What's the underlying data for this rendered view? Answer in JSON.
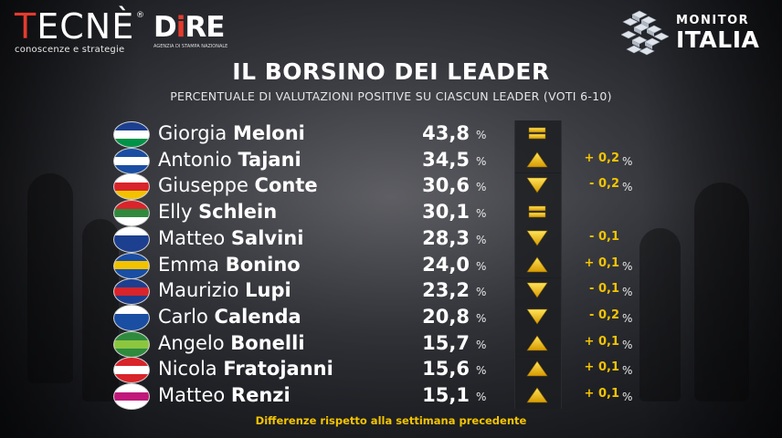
{
  "header": {
    "tecne": {
      "word_t": "T",
      "word_rest": "ECNÈ",
      "reg": "®",
      "sub": "conoscenze e strategie"
    },
    "dire": {
      "word_d": "D",
      "word_i": "i",
      "word_re": "RE",
      "sub": "AGENZIA DI STAMPA NAZIONALE"
    },
    "monitor": {
      "line1": "MONITOR",
      "line2": "ITALIA"
    }
  },
  "title": "IL BORSINO DEI LEADER",
  "subtitle": "PERCENTUALE DI VALUTAZIONI POSITIVE SU CIASCUN LEADER (VOTI 6-10)",
  "pct_sign": "%",
  "colors": {
    "accent": "#f4c400",
    "red": "#e53b2f"
  },
  "leaders": [
    {
      "first": "Giorgia",
      "last": "Meloni",
      "value": "43,8",
      "trend": "equal",
      "delta": "",
      "delta_pct": "",
      "logo_colors": [
        "#1c3f8f",
        "#ffffff",
        "#009246"
      ]
    },
    {
      "first": "Antonio",
      "last": "Tajani",
      "value": "34,5",
      "trend": "up",
      "delta": "+ 0,2",
      "delta_pct": "%",
      "logo_colors": [
        "#1a4ea3",
        "#ffffff",
        "#1a4ea3"
      ]
    },
    {
      "first": "Giuseppe",
      "last": "Conte",
      "value": "30,6",
      "trend": "down",
      "delta": "- 0,2",
      "delta_pct": "%",
      "logo_colors": [
        "#ffffff",
        "#d8242a",
        "#f2c200"
      ]
    },
    {
      "first": "Elly",
      "last": "Schlein",
      "value": "30,1",
      "trend": "equal",
      "delta": "",
      "delta_pct": "",
      "logo_colors": [
        "#d8242a",
        "#2f8a3e",
        "#ffffff"
      ]
    },
    {
      "first": "Matteo",
      "last": "Salvini",
      "value": "28,3",
      "trend": "down",
      "delta": "- 0,1",
      "delta_pct": "",
      "logo_colors": [
        "#ffffff",
        "#1c3f8f",
        "#1c3f8f"
      ]
    },
    {
      "first": "Emma",
      "last": "Bonino",
      "value": "24,0",
      "trend": "up",
      "delta": "+ 0,1",
      "delta_pct": "%",
      "logo_colors": [
        "#1a4ea3",
        "#f2c200",
        "#1a4ea3"
      ]
    },
    {
      "first": "Maurizio",
      "last": "Lupi",
      "value": "23,2",
      "trend": "down",
      "delta": "- 0,1",
      "delta_pct": "%",
      "logo_colors": [
        "#1c3f8f",
        "#d8242a",
        "#1c3f8f"
      ]
    },
    {
      "first": "Carlo",
      "last": "Calenda",
      "value": "20,8",
      "trend": "down",
      "delta": "- 0,2",
      "delta_pct": "%",
      "logo_colors": [
        "#ffffff",
        "#1a4ea3",
        "#1a4ea3"
      ]
    },
    {
      "first": "Angelo",
      "last": "Bonelli",
      "value": "15,7",
      "trend": "up",
      "delta": "+ 0,1",
      "delta_pct": "%",
      "logo_colors": [
        "#2f8a3e",
        "#8cc63f",
        "#2f8a3e"
      ]
    },
    {
      "first": "Nicola",
      "last": "Fratojanni",
      "value": "15,6",
      "trend": "up",
      "delta": "+ 0,1",
      "delta_pct": "%",
      "logo_colors": [
        "#d8242a",
        "#ffffff",
        "#d8242a"
      ]
    },
    {
      "first": "Matteo",
      "last": "Renzi",
      "value": "15,1",
      "trend": "up",
      "delta": "+ 0,1",
      "delta_pct": "%",
      "logo_colors": [
        "#ffffff",
        "#c0187a",
        "#ffffff"
      ]
    }
  ],
  "footnote": "Differenze rispetto alla settimana precedente"
}
